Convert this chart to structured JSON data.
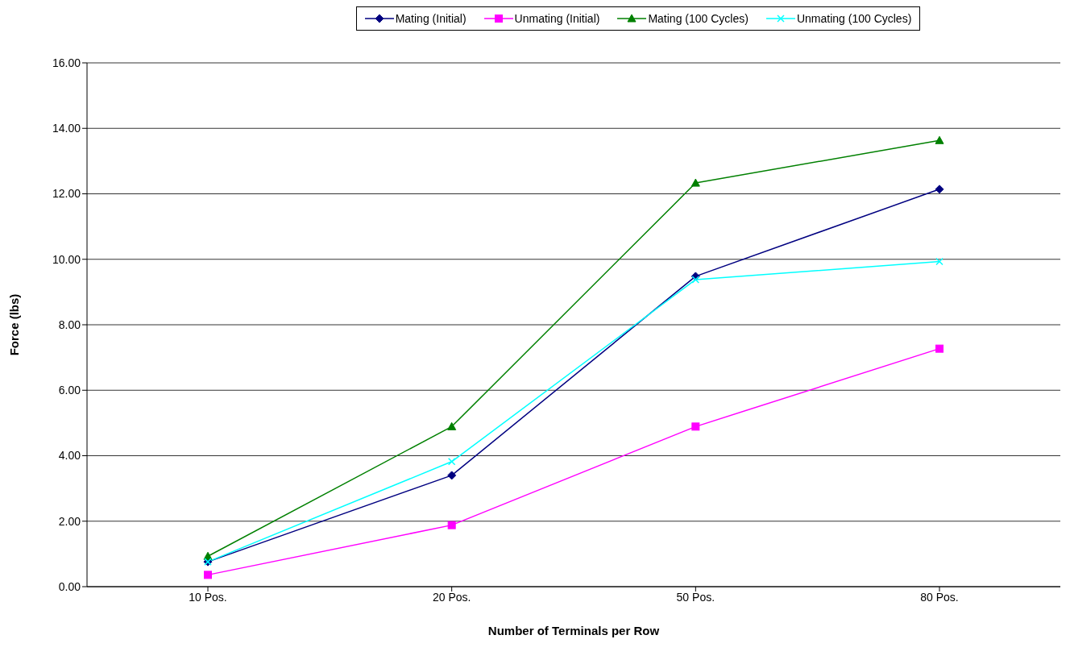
{
  "chart_data": {
    "type": "line",
    "xlabel": "Number of Terminals per Row",
    "ylabel": "Force (lbs)",
    "categories": [
      "10 Pos.",
      "20 Pos.",
      "50 Pos.",
      "80 Pos."
    ],
    "series": [
      {
        "name": "Mating (Initial)",
        "color": "#000080",
        "marker": "diamond",
        "values": [
          0.76,
          3.4,
          9.48,
          12.14
        ]
      },
      {
        "name": "Unmating (Initial)",
        "color": "#ff00ff",
        "marker": "square",
        "values": [
          0.36,
          1.88,
          4.89,
          7.27
        ]
      },
      {
        "name": "Mating (100 Cycles)",
        "color": "#008000",
        "marker": "triangle",
        "values": [
          0.93,
          4.89,
          12.33,
          13.63
        ]
      },
      {
        "name": "Unmating (100 Cycles)",
        "color": "#00ffff",
        "marker": "cross",
        "values": [
          0.76,
          3.82,
          9.38,
          9.93
        ]
      }
    ],
    "ylim": [
      0,
      16
    ],
    "yticks": [
      {
        "value": 0,
        "label": "0.00"
      },
      {
        "value": 2,
        "label": "2.00"
      },
      {
        "value": 4,
        "label": "4.00"
      },
      {
        "value": 6,
        "label": "6.00"
      },
      {
        "value": 8,
        "label": "8.00"
      },
      {
        "value": 10,
        "label": "10.00"
      },
      {
        "value": 12,
        "label": "12.00"
      },
      {
        "value": 14,
        "label": "14.00"
      },
      {
        "value": 16,
        "label": "16.00"
      }
    ],
    "grid": "y",
    "legend": "top"
  }
}
